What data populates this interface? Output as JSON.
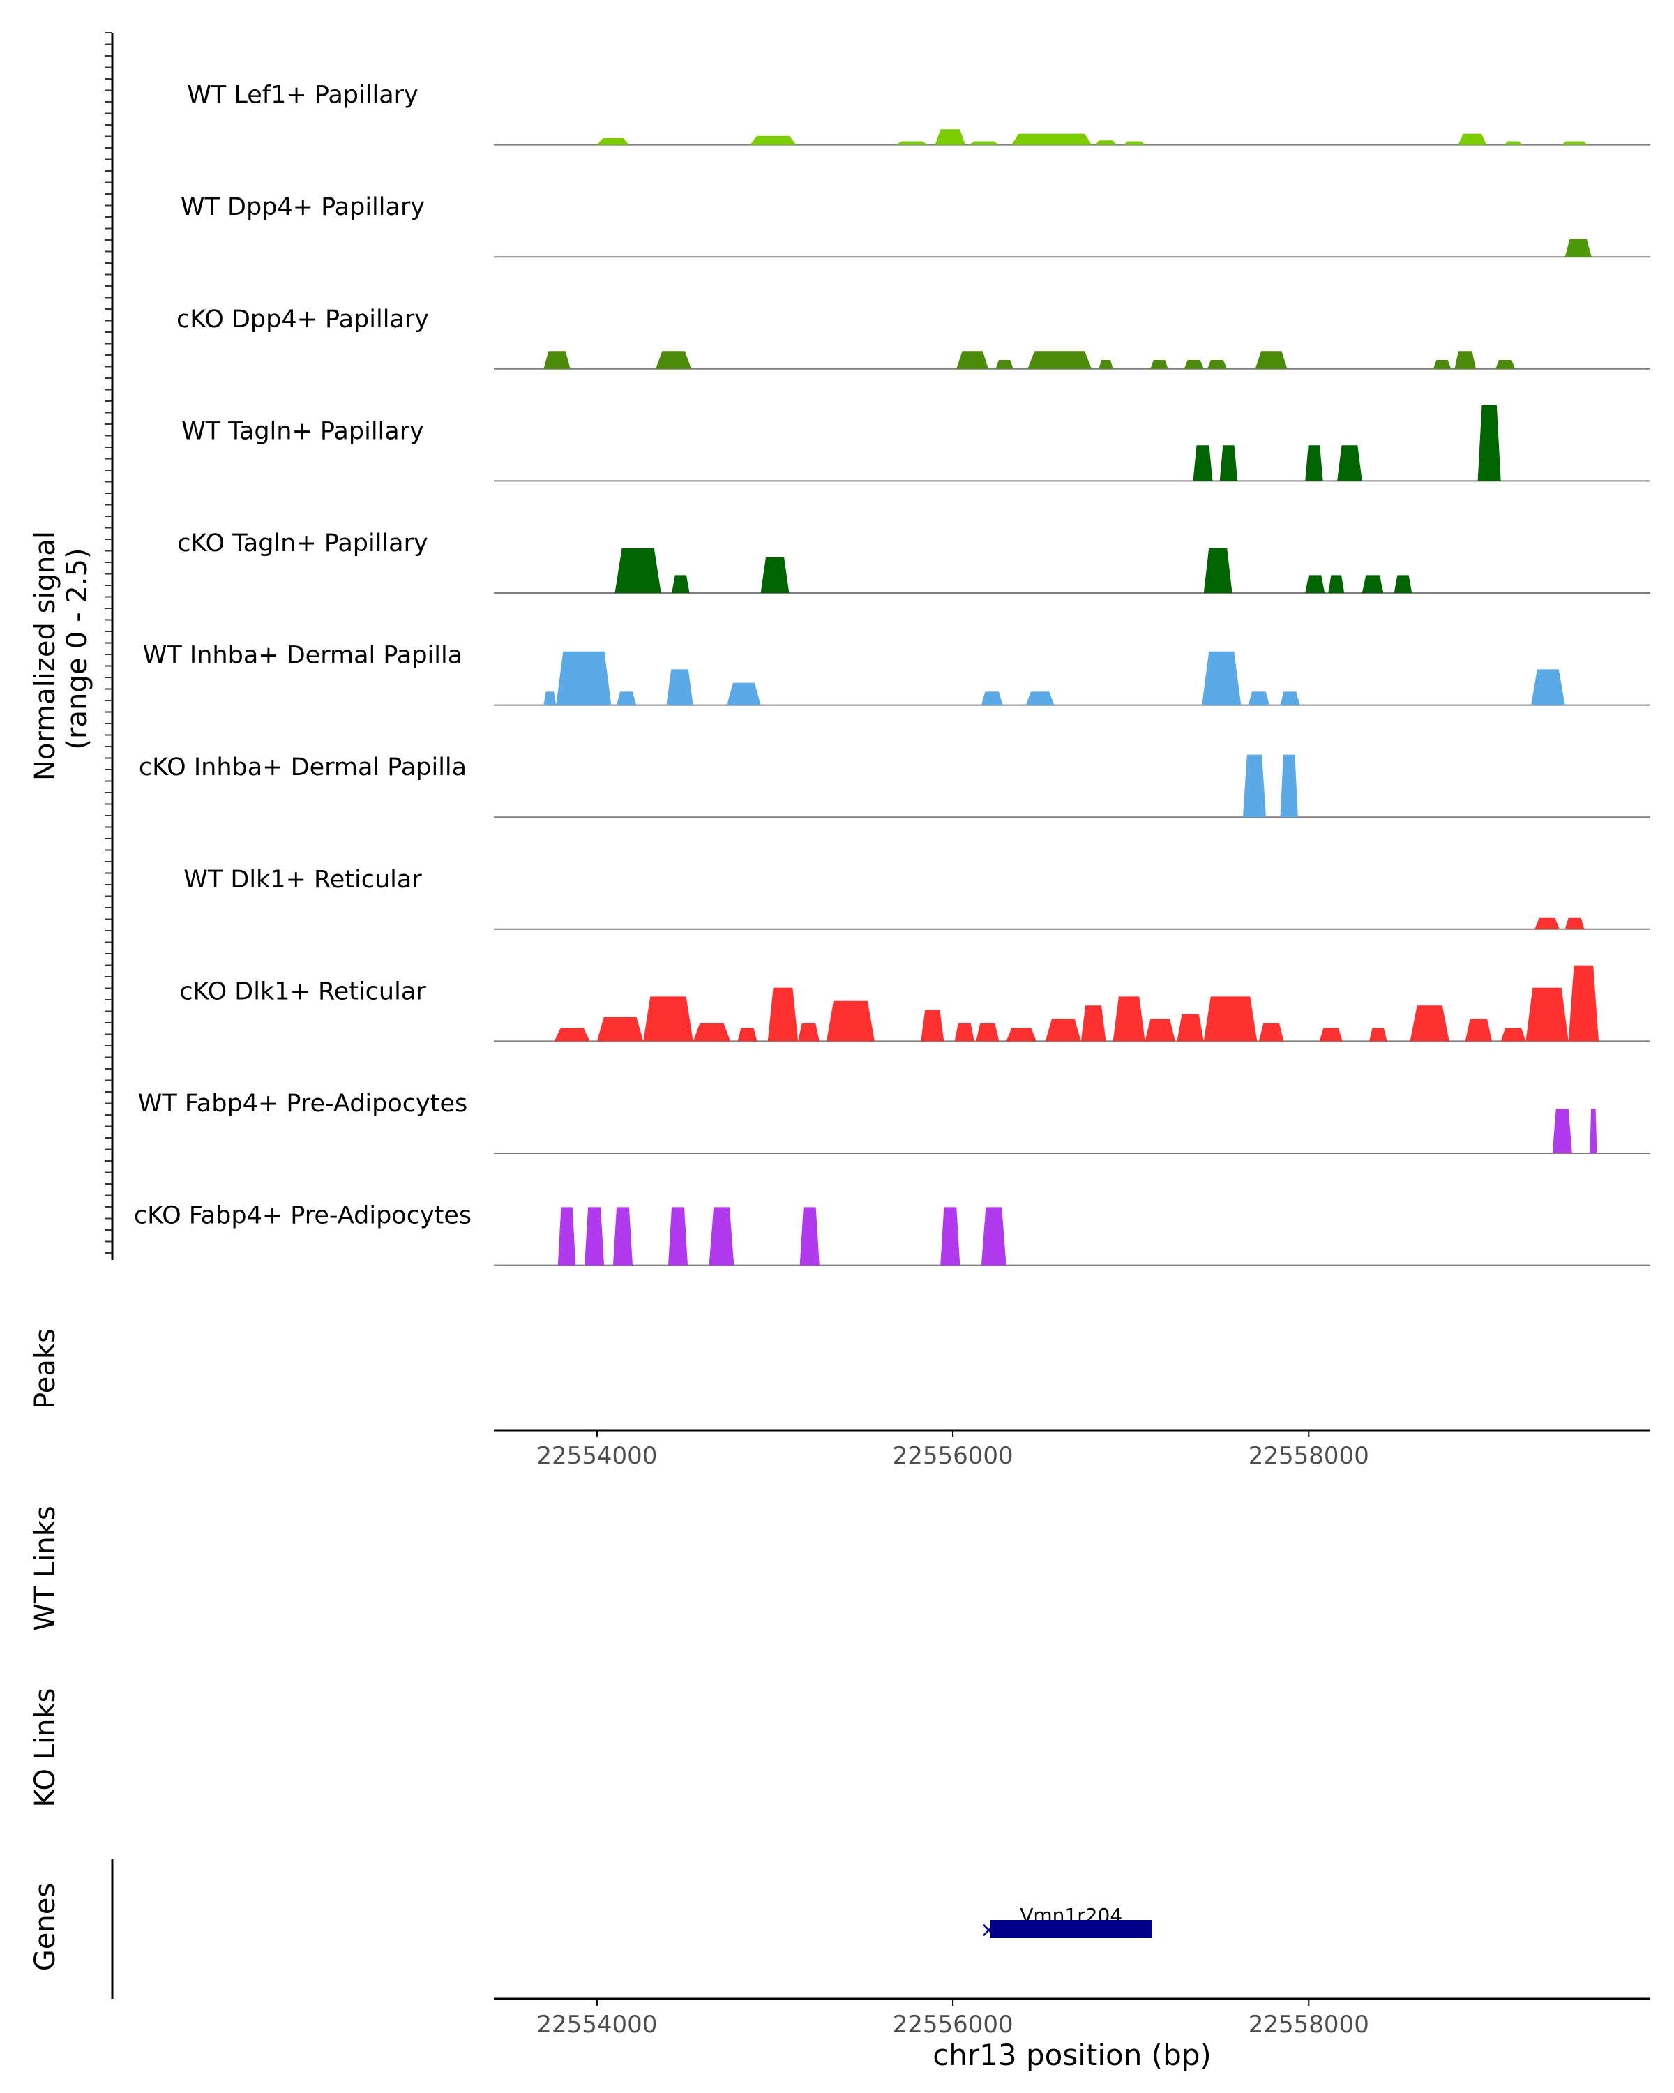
{
  "chart_data": {
    "type": "area",
    "title": "",
    "xlabel": "chr13 position (bp)",
    "ylabel_line1": "Normalized signal",
    "ylabel_line2": "(range 0 - 2.5)",
    "ylim": [
      0,
      2.5
    ],
    "xlim": [
      22553420,
      22559920
    ],
    "x_ticks": [
      "22554000",
      "22556000",
      "22558000"
    ],
    "tracks": [
      {
        "name": "WT Lef1+ Papillary",
        "color": "#7ccd00",
        "peaks": [
          [
            22554000,
            22554180,
            0.15
          ],
          [
            22554860,
            22555120,
            0.2
          ],
          [
            22555680,
            22555860,
            0.08
          ],
          [
            22555900,
            22556070,
            0.35
          ],
          [
            22556090,
            22556260,
            0.08
          ],
          [
            22556330,
            22556780,
            0.25
          ],
          [
            22556800,
            22556920,
            0.1
          ],
          [
            22556960,
            22557080,
            0.08
          ],
          [
            22558840,
            22559000,
            0.25
          ],
          [
            22559100,
            22559200,
            0.08
          ],
          [
            22559420,
            22559570,
            0.08
          ]
        ]
      },
      {
        "name": "WT Dpp4+ Papillary",
        "color": "#4c9a0a",
        "peaks": [
          [
            22559440,
            22559590,
            0.4
          ]
        ]
      },
      {
        "name": "cKO Dpp4+ Papillary",
        "color": "#4c8a0a",
        "peaks": [
          [
            22553700,
            22553850,
            0.4
          ],
          [
            22554330,
            22554530,
            0.4
          ],
          [
            22556020,
            22556200,
            0.4
          ],
          [
            22556240,
            22556340,
            0.2
          ],
          [
            22556420,
            22556780,
            0.4
          ],
          [
            22556820,
            22556900,
            0.2
          ],
          [
            22557110,
            22557210,
            0.2
          ],
          [
            22557300,
            22557410,
            0.2
          ],
          [
            22557430,
            22557540,
            0.2
          ],
          [
            22557700,
            22557880,
            0.4
          ],
          [
            22558700,
            22558800,
            0.2
          ],
          [
            22558820,
            22558940,
            0.4
          ],
          [
            22559050,
            22559160,
            0.2
          ]
        ]
      },
      {
        "name": "WT Tagln+ Papillary",
        "color": "#006400",
        "peaks": [
          [
            22557350,
            22557460,
            0.8
          ],
          [
            22557500,
            22557600,
            0.8
          ],
          [
            22557980,
            22558080,
            0.8
          ],
          [
            22558160,
            22558300,
            0.8
          ],
          [
            22558950,
            22559080,
            1.7
          ]
        ]
      },
      {
        "name": "cKO Tagln+ Papillary",
        "color": "#006400",
        "peaks": [
          [
            22554100,
            22554360,
            1.0
          ],
          [
            22554420,
            22554520,
            0.4
          ],
          [
            22554920,
            22555080,
            0.8
          ],
          [
            22557410,
            22557570,
            1.0
          ],
          [
            22557980,
            22558090,
            0.4
          ],
          [
            22558110,
            22558200,
            0.4
          ],
          [
            22558300,
            22558420,
            0.4
          ],
          [
            22558480,
            22558580,
            0.4
          ]
        ]
      },
      {
        "name": "WT Inhba+ Dermal Papilla",
        "color": "#5ca9e8",
        "peaks": [
          [
            22553700,
            22553770,
            0.3
          ],
          [
            22553770,
            22554080,
            1.2
          ],
          [
            22554110,
            22554220,
            0.3
          ],
          [
            22554390,
            22554540,
            0.8
          ],
          [
            22554730,
            22554920,
            0.5
          ],
          [
            22556160,
            22556280,
            0.3
          ],
          [
            22556410,
            22556570,
            0.3
          ],
          [
            22557400,
            22557620,
            1.2
          ],
          [
            22557660,
            22557780,
            0.3
          ],
          [
            22557840,
            22557950,
            0.3
          ],
          [
            22559250,
            22559440,
            0.8
          ]
        ]
      },
      {
        "name": "cKO Inhba+ Dermal Papilla",
        "color": "#5ca9e8",
        "peaks": [
          [
            22557630,
            22557760,
            1.4
          ],
          [
            22557840,
            22557940,
            1.4
          ]
        ]
      },
      {
        "name": "WT Dlk1+ Reticular",
        "color": "#ff3030",
        "peaks": [
          [
            22559270,
            22559410,
            0.25
          ],
          [
            22559440,
            22559550,
            0.25
          ]
        ]
      },
      {
        "name": "cKO Dlk1+ Reticular",
        "color": "#ff3030",
        "peaks": [
          [
            22553760,
            22553960,
            0.3
          ],
          [
            22554000,
            22554260,
            0.55
          ],
          [
            22554260,
            22554540,
            1.0
          ],
          [
            22554540,
            22554750,
            0.4
          ],
          [
            22554790,
            22554900,
            0.3
          ],
          [
            22554960,
            22555130,
            1.2
          ],
          [
            22555130,
            22555250,
            0.4
          ],
          [
            22555290,
            22555560,
            0.9
          ],
          [
            22555820,
            22555950,
            0.7
          ],
          [
            22556010,
            22556120,
            0.4
          ],
          [
            22556130,
            22556260,
            0.4
          ],
          [
            22556300,
            22556470,
            0.3
          ],
          [
            22556520,
            22556720,
            0.5
          ],
          [
            22556720,
            22556860,
            0.8
          ],
          [
            22556900,
            22557080,
            1.0
          ],
          [
            22557080,
            22557250,
            0.5
          ],
          [
            22557260,
            22557410,
            0.6
          ],
          [
            22557410,
            22557710,
            1.0
          ],
          [
            22557720,
            22557860,
            0.4
          ],
          [
            22558060,
            22558190,
            0.3
          ],
          [
            22558340,
            22558440,
            0.3
          ],
          [
            22558570,
            22558790,
            0.8
          ],
          [
            22558880,
            22559030,
            0.5
          ],
          [
            22559080,
            22559220,
            0.3
          ],
          [
            22559220,
            22559460,
            1.2
          ],
          [
            22559460,
            22559630,
            1.7
          ]
        ]
      },
      {
        "name": "WT Fabp4+ Pre-Adipocytes",
        "color": "#b23aee",
        "peaks": [
          [
            22559370,
            22559480,
            1.0
          ],
          [
            22559580,
            22559620,
            1.0
          ]
        ]
      },
      {
        "name": "cKO Fabp4+ Pre-Adipocytes",
        "color": "#b23aee",
        "peaks": [
          [
            22553780,
            22553880,
            1.3
          ],
          [
            22553930,
            22554040,
            1.3
          ],
          [
            22554090,
            22554200,
            1.3
          ],
          [
            22554400,
            22554510,
            1.3
          ],
          [
            22554630,
            22554770,
            1.3
          ],
          [
            22555140,
            22555250,
            1.3
          ],
          [
            22555930,
            22556040,
            1.3
          ],
          [
            22556160,
            22556300,
            1.3
          ]
        ]
      }
    ],
    "annotation_rows": [
      "Peaks",
      "WT Links",
      "KO Links",
      "Genes"
    ],
    "gene": {
      "name": "Vmn1r204",
      "start": 22556210,
      "end": 22557120,
      "color": "#00008b",
      "strand_marker": "×"
    }
  }
}
